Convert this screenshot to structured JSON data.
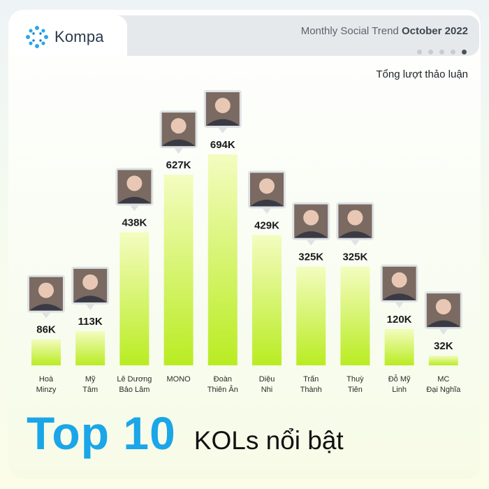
{
  "brand": {
    "name": "Kompa"
  },
  "header": {
    "trend_prefix": "Monthly Social Trend",
    "trend_period": "October 2022"
  },
  "pager": {
    "total": 5,
    "active_index": 4
  },
  "chart_data": {
    "type": "bar",
    "metric_label": "Tổng lượt thảo luận",
    "categories": [
      [
        "Hoà",
        "Minzy"
      ],
      [
        "Mỹ",
        "Tâm"
      ],
      [
        "Lê Dương",
        "Bảo Lâm"
      ],
      [
        "MONO"
      ],
      [
        "Đoàn",
        "Thiên Ân"
      ],
      [
        "Diệu",
        "Nhi"
      ],
      [
        "Trấn",
        "Thành"
      ],
      [
        "Thuỳ",
        "Tiên"
      ],
      [
        "Đỗ Mỹ",
        "Linh"
      ],
      [
        "MC",
        "Đại Nghĩa"
      ]
    ],
    "values": [
      86,
      113,
      438,
      627,
      694,
      429,
      325,
      325,
      120,
      32
    ],
    "value_labels": [
      "86K",
      "113K",
      "438K",
      "627K",
      "694K",
      "429K",
      "325K",
      "325K",
      "120K",
      "32K"
    ],
    "unit": "K",
    "ylim": [
      0,
      694
    ],
    "bar_color": "#c6f03a",
    "grid": false
  },
  "footer": {
    "title_big": "Top 10",
    "title_small": "KOLs nổi bật"
  },
  "colors": {
    "accent_blue": "#1aa6e8",
    "bar_top": "#f4fcc0",
    "bar_bottom": "#b9ec22"
  }
}
